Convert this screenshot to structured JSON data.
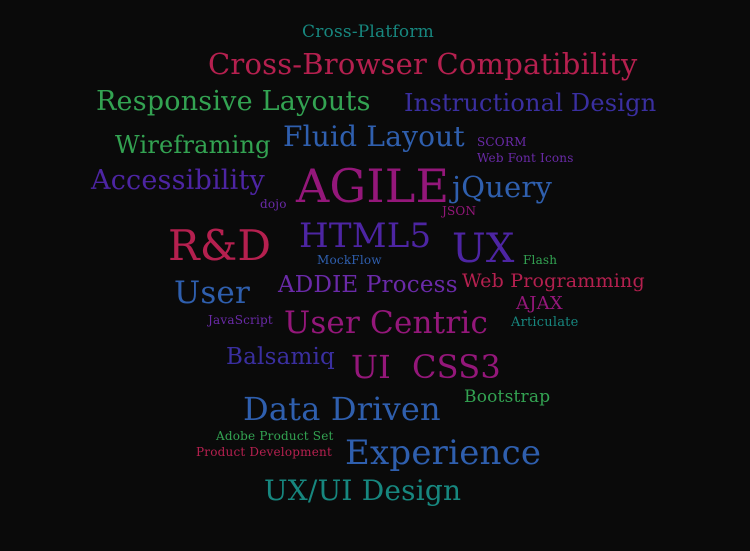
{
  "colors": {
    "background": "#0a0a0a",
    "teal": "#17877f",
    "crimson": "#b5204f",
    "green": "#33a352",
    "indigo": "#3a2fa0",
    "blue": "#2f5fae",
    "purple": "#6a2aa8",
    "magenta": "#94177a",
    "violet": "#4d25a3"
  },
  "words": [
    {
      "text": "Cross-Platform",
      "color": "#17877f"
    },
    {
      "text": "Cross-Browser Compatibility",
      "color": "#b5204f"
    },
    {
      "text": "Responsive Layouts",
      "color": "#33a352"
    },
    {
      "text": "Instructional Design",
      "color": "#3a2fa0"
    },
    {
      "text": "Wireframing",
      "color": "#33a352"
    },
    {
      "text": "Fluid Layout",
      "color": "#2f5fae"
    },
    {
      "text": "SCORM",
      "color": "#6a2aa8"
    },
    {
      "text": "Web Font Icons",
      "color": "#6a2aa8"
    },
    {
      "text": "Accessibility",
      "color": "#4d25a3"
    },
    {
      "text": "AGILE",
      "color": "#94177a"
    },
    {
      "text": "jQuery",
      "color": "#2f5fae"
    },
    {
      "text": "dojo",
      "color": "#6a2aa8"
    },
    {
      "text": "JSON",
      "color": "#94177a"
    },
    {
      "text": "R&D",
      "color": "#b5204f"
    },
    {
      "text": "HTML5",
      "color": "#4d25a3"
    },
    {
      "text": "UX",
      "color": "#4d25a3"
    },
    {
      "text": "MockFlow",
      "color": "#2f5fae"
    },
    {
      "text": "Flash",
      "color": "#33a352"
    },
    {
      "text": "ADDIE Process",
      "color": "#6a2aa8"
    },
    {
      "text": "Web Programming",
      "color": "#b5204f"
    },
    {
      "text": "User",
      "color": "#2f5fae"
    },
    {
      "text": "AJAX",
      "color": "#94177a"
    },
    {
      "text": "JavaScript",
      "color": "#6a2aa8"
    },
    {
      "text": "User Centric",
      "color": "#94177a"
    },
    {
      "text": "Articulate",
      "color": "#17877f"
    },
    {
      "text": "Balsamiq",
      "color": "#3a2fa0"
    },
    {
      "text": "UI",
      "color": "#94177a"
    },
    {
      "text": "CSS3",
      "color": "#94177a"
    },
    {
      "text": "Data Driven",
      "color": "#2f5fae"
    },
    {
      "text": "Bootstrap",
      "color": "#33a352"
    },
    {
      "text": "Adobe Product Set",
      "color": "#33a352"
    },
    {
      "text": "Product Development",
      "color": "#b5204f"
    },
    {
      "text": "Experience",
      "color": "#2f5fae"
    },
    {
      "text": "UX/UI Design",
      "color": "#17877f"
    }
  ]
}
